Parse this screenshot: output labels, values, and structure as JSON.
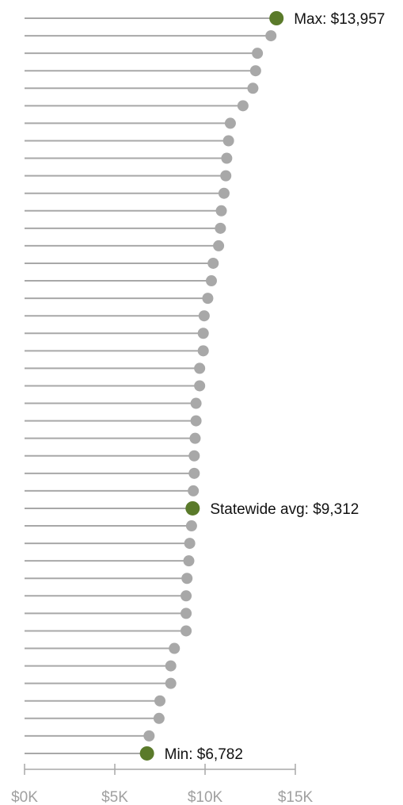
{
  "chart_data": {
    "type": "lollipop",
    "orientation": "horizontal",
    "xlim": [
      0,
      15000
    ],
    "x_ticks": [
      0,
      5000,
      10000,
      15000
    ],
    "x_tick_labels": [
      "$0K",
      "$5K",
      "$10K",
      "$15K"
    ],
    "grid": false,
    "colors": {
      "stem": "#a8a8a8",
      "point": "#a8a8a8",
      "highlight": "#5a7a2a",
      "tick_label": "#a0a0a0",
      "annotation": "#111111"
    },
    "values": [
      13957,
      13650,
      12900,
      12800,
      12650,
      12100,
      11400,
      11300,
      11200,
      11150,
      11050,
      10900,
      10850,
      10750,
      10450,
      10350,
      10150,
      9950,
      9900,
      9900,
      9700,
      9700,
      9500,
      9500,
      9450,
      9400,
      9400,
      9350,
      9312,
      9250,
      9150,
      9100,
      9000,
      8950,
      8950,
      8950,
      8300,
      8100,
      8100,
      7500,
      7450,
      6900,
      6782
    ],
    "annotations": [
      {
        "index": 0,
        "text": "Max: $13,957"
      },
      {
        "index": 28,
        "text": "Statewide avg: $9,312"
      },
      {
        "index": 42,
        "text": "Min: $6,782"
      }
    ]
  }
}
